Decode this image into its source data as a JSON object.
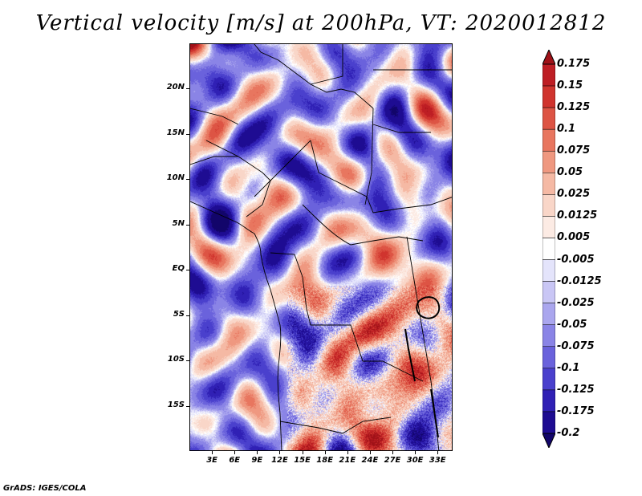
{
  "title": "Vertical velocity [m/s] at 200hPa, VT: 2020012812",
  "credit": "GrADS: IGES/COLA",
  "map": {
    "lon_range": [
      0,
      35
    ],
    "lat_range": [
      -20,
      25
    ],
    "lat_labels": [
      {
        "lat": 20,
        "text": "20N"
      },
      {
        "lat": 15,
        "text": "15N"
      },
      {
        "lat": 10,
        "text": "10N"
      },
      {
        "lat": 5,
        "text": "5N"
      },
      {
        "lat": 0,
        "text": "EQ"
      },
      {
        "lat": -5,
        "text": "5S"
      },
      {
        "lat": -10,
        "text": "10S"
      },
      {
        "lat": -15,
        "text": "15S"
      }
    ],
    "lon_labels": [
      {
        "lon": 3,
        "text": "3E"
      },
      {
        "lon": 6,
        "text": "6E"
      },
      {
        "lon": 9,
        "text": "9E"
      },
      {
        "lon": 12,
        "text": "12E"
      },
      {
        "lon": 15,
        "text": "15E"
      },
      {
        "lon": 18,
        "text": "18E"
      },
      {
        "lon": 21,
        "text": "21E"
      },
      {
        "lon": 24,
        "text": "24E"
      },
      {
        "lon": 27,
        "text": "27E"
      },
      {
        "lon": 30,
        "text": "30E"
      },
      {
        "lon": 33,
        "text": "33E"
      }
    ]
  },
  "colorbar": {
    "levels": [
      "0.175",
      "0.15",
      "0.125",
      "0.1",
      "0.075",
      "0.05",
      "0.025",
      "0.0125",
      "0.005",
      "-0.005",
      "-0.0125",
      "-0.025",
      "-0.05",
      "-0.075",
      "-0.1",
      "-0.125",
      "-0.175",
      "-0.2"
    ],
    "colors": [
      "#a01218",
      "#be1e24",
      "#d0342e",
      "#dd5444",
      "#e8765f",
      "#ef9880",
      "#f5b9a4",
      "#f9d6c8",
      "#fcebe4",
      "#ffffff",
      "#e4e4fb",
      "#c9c6f5",
      "#aaa6ee",
      "#8a84e6",
      "#6a62dc",
      "#4a40cd",
      "#3020b5",
      "#1e0c92",
      "#12056a"
    ]
  }
}
